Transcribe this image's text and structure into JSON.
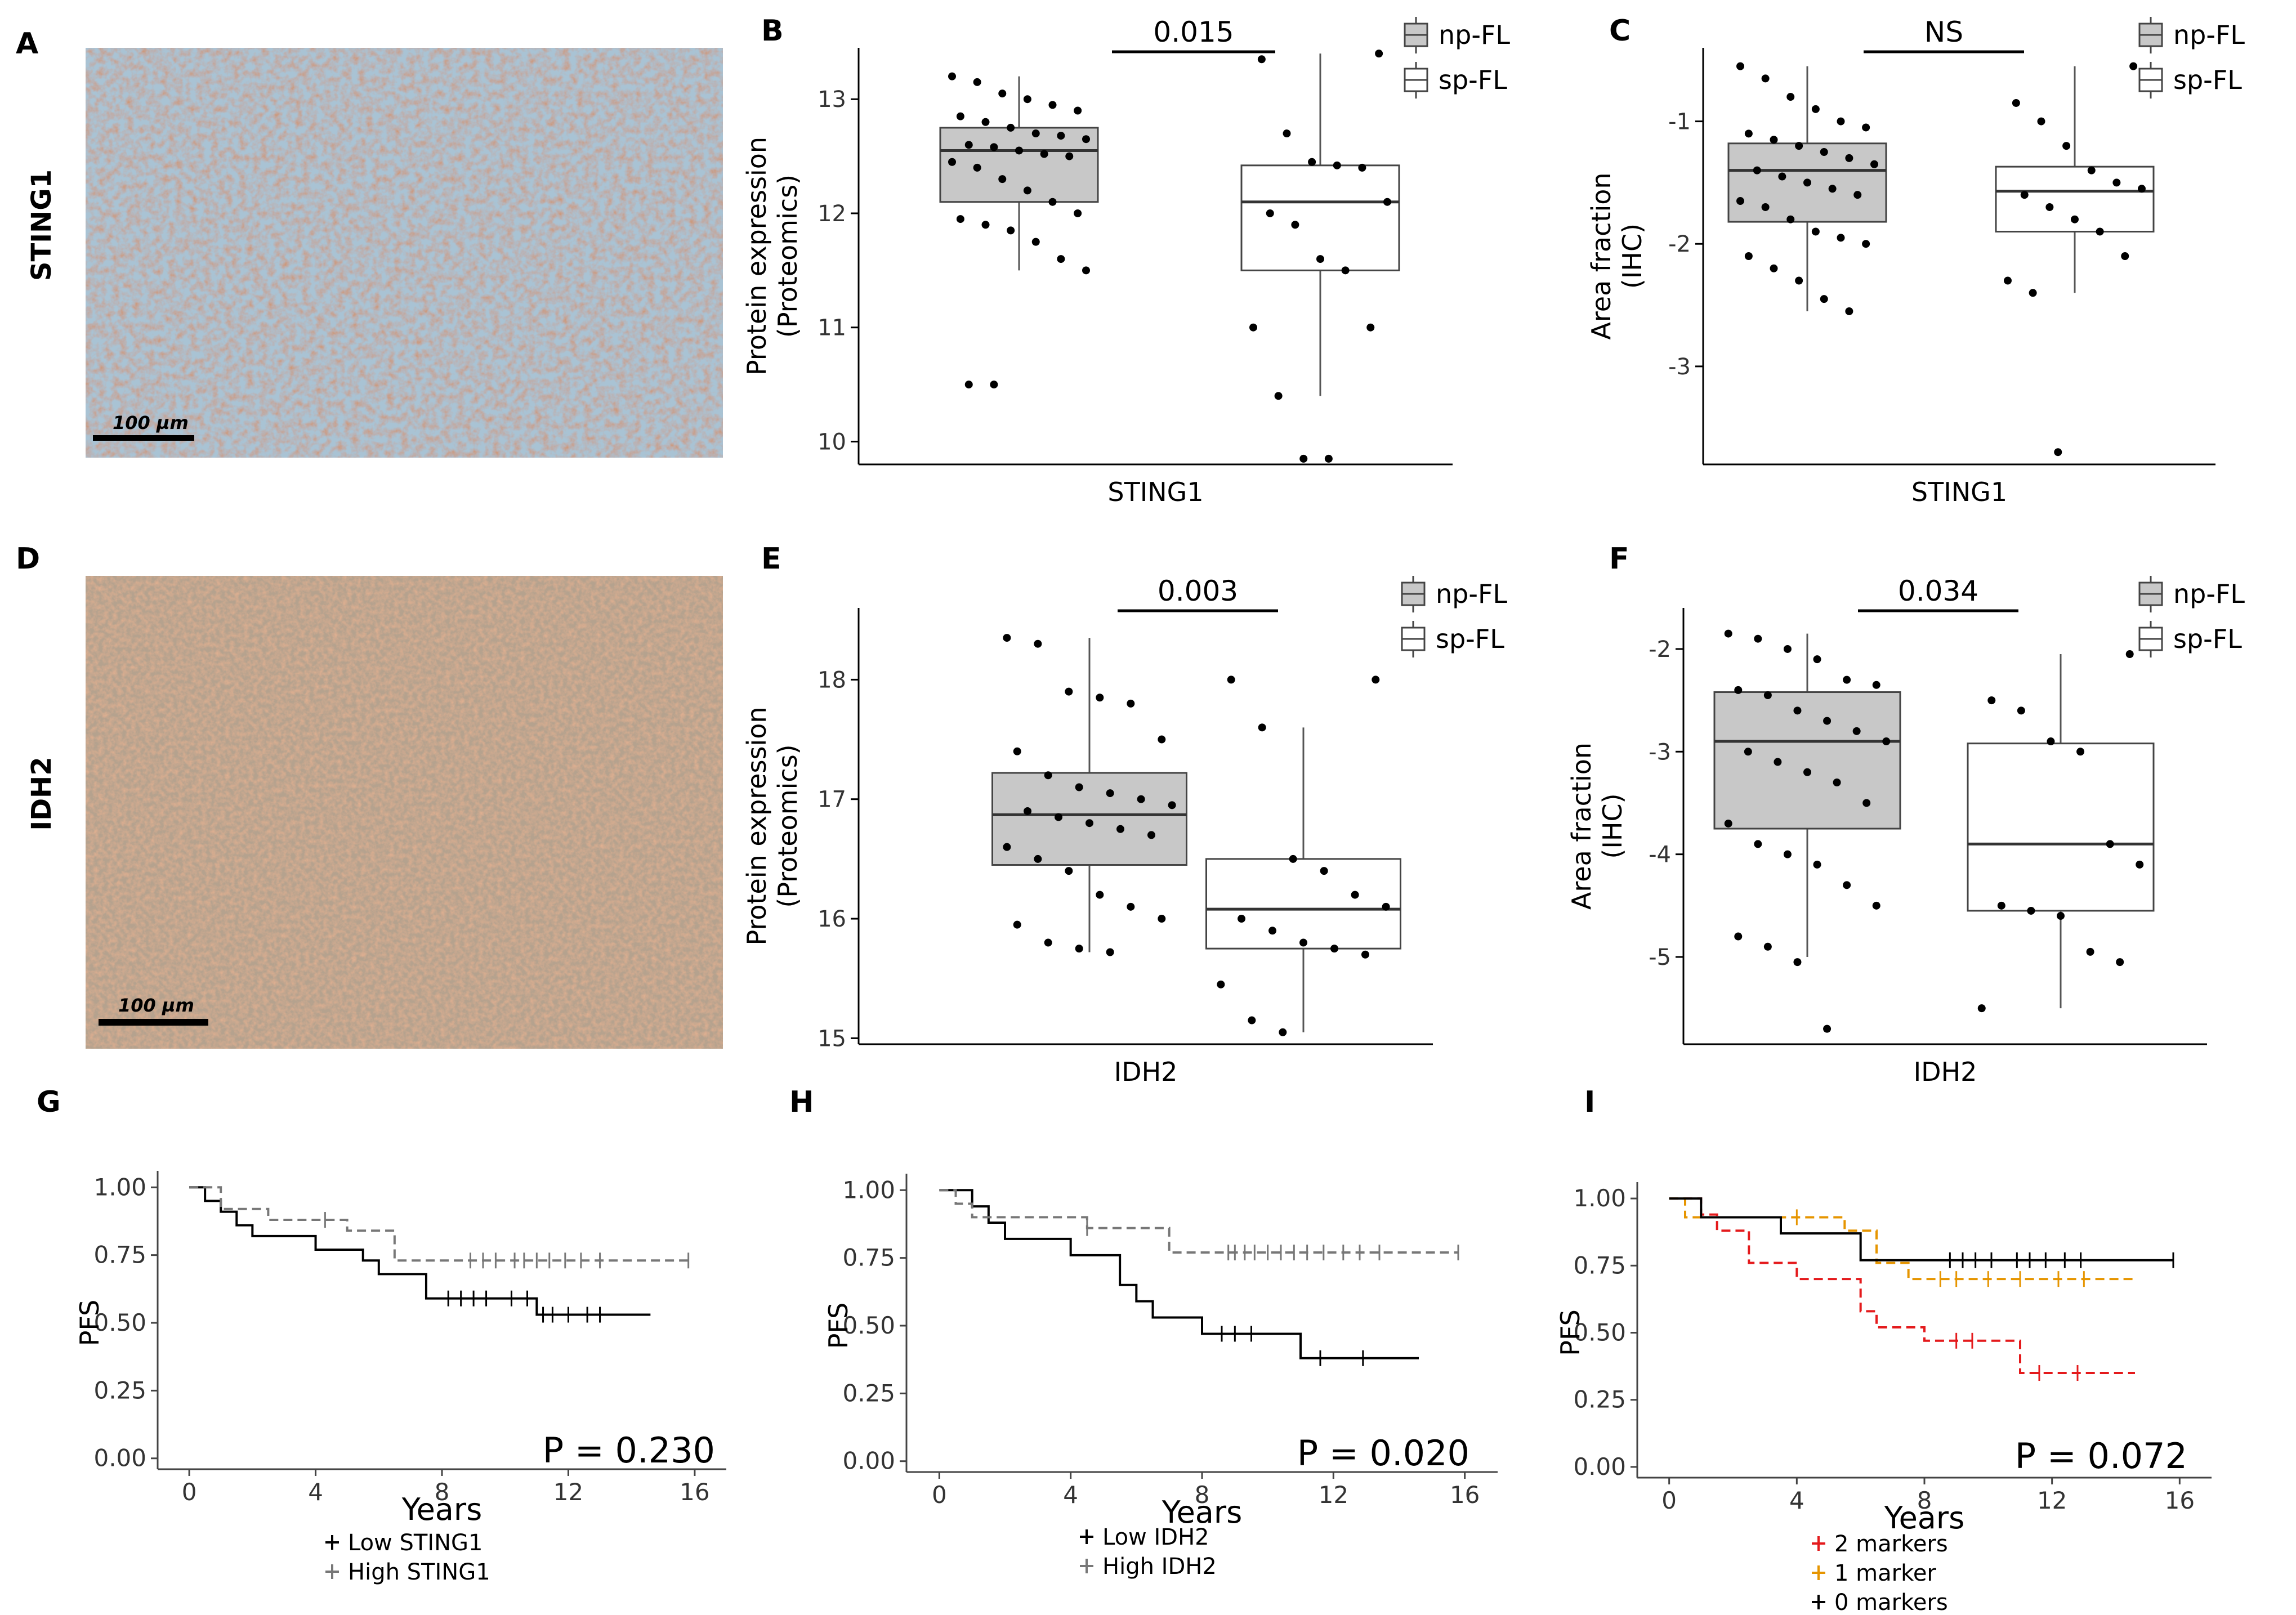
{
  "panel_labels": [
    "A",
    "B",
    "C",
    "D",
    "E",
    "F",
    "G",
    "H",
    "I"
  ],
  "micrographs": [
    {
      "row_label": "STING1",
      "scale_bar": "100 µm",
      "stain_color": "#9c4a26"
    },
    {
      "row_label": "IDH2",
      "scale_bar": "100 µm",
      "stain_color": "#c26a40"
    }
  ],
  "group_colors": {
    "np-FL": "#c8c8c8",
    "sp-FL": "#ffffff"
  },
  "km_colors": {
    "low": "#000000",
    "high": "#777777",
    "two": "#e41a1c",
    "one": "#e69500",
    "zero": "#000000"
  },
  "chart_data": [
    {
      "panel": "B",
      "type": "box",
      "xlabel": "STING1",
      "ylabel_line1": "Protein expression",
      "ylabel_line2": "(Proteomics)",
      "ylim": [
        9.8,
        13.45
      ],
      "yticks": [
        10,
        11,
        12,
        13
      ],
      "ytick_labels": [
        "10",
        "11",
        "12",
        "13"
      ],
      "legend": [
        "np-FL",
        "sp-FL"
      ],
      "significance": "0.015",
      "series": [
        {
          "name": "np-FL",
          "q1": 12.1,
          "median": 12.55,
          "q3": 12.75,
          "whisker_low": 11.5,
          "whisker_high": 13.2,
          "points": [
            13.2,
            13.15,
            13.05,
            13.0,
            12.95,
            12.9,
            12.85,
            12.8,
            12.75,
            12.7,
            12.68,
            12.65,
            12.6,
            12.58,
            12.55,
            12.52,
            12.5,
            12.45,
            12.4,
            12.3,
            12.2,
            12.1,
            12.0,
            11.95,
            11.9,
            11.85,
            11.75,
            11.6,
            11.5,
            10.5,
            10.5
          ]
        },
        {
          "name": "sp-FL",
          "q1": 11.5,
          "median": 12.1,
          "q3": 12.42,
          "whisker_low": 10.4,
          "whisker_high": 13.4,
          "points": [
            13.4,
            13.35,
            12.7,
            12.45,
            12.42,
            12.4,
            12.1,
            12.0,
            11.9,
            11.6,
            11.5,
            11.0,
            11.0,
            10.4,
            9.85,
            9.85
          ]
        }
      ]
    },
    {
      "panel": "C",
      "type": "box",
      "xlabel": "STING1",
      "ylabel_line1": "Area fraction",
      "ylabel_line2": "(IHC)",
      "ylim": [
        -3.8,
        -0.4
      ],
      "yticks": [
        -1,
        -2,
        -3
      ],
      "ytick_labels": [
        "-1",
        "-2",
        "-3"
      ],
      "legend": [
        "np-FL",
        "sp-FL"
      ],
      "significance": "NS",
      "series": [
        {
          "name": "np-FL",
          "q1": -1.82,
          "median": -1.4,
          "q3": -1.18,
          "whisker_low": -2.55,
          "whisker_high": -0.55,
          "points": [
            -0.55,
            -0.65,
            -0.8,
            -0.9,
            -1.0,
            -1.05,
            -1.1,
            -1.15,
            -1.2,
            -1.25,
            -1.3,
            -1.35,
            -1.4,
            -1.45,
            -1.5,
            -1.55,
            -1.6,
            -1.65,
            -1.7,
            -1.8,
            -1.9,
            -1.95,
            -2.0,
            -2.1,
            -2.2,
            -2.3,
            -2.45,
            -2.55
          ]
        },
        {
          "name": "sp-FL",
          "q1": -1.9,
          "median": -1.57,
          "q3": -1.37,
          "whisker_low": -2.4,
          "whisker_high": -0.55,
          "points": [
            -0.55,
            -0.85,
            -1.0,
            -1.2,
            -1.4,
            -1.5,
            -1.55,
            -1.6,
            -1.7,
            -1.8,
            -1.9,
            -2.1,
            -2.3,
            -2.4,
            -3.7
          ]
        }
      ]
    },
    {
      "panel": "E",
      "type": "box",
      "xlabel": "IDH2",
      "ylabel_line1": "Protein expression",
      "ylabel_line2": "(Proteomics)",
      "ylim": [
        14.95,
        18.6
      ],
      "yticks": [
        15,
        16,
        17,
        18
      ],
      "ytick_labels": [
        "15",
        "16",
        "17",
        "18"
      ],
      "legend": [
        "np-FL",
        "sp-FL"
      ],
      "significance": "0.003",
      "series": [
        {
          "name": "np-FL",
          "q1": 16.45,
          "median": 16.87,
          "q3": 17.22,
          "whisker_low": 15.72,
          "whisker_high": 18.35,
          "points": [
            18.35,
            18.3,
            17.9,
            17.85,
            17.8,
            17.5,
            17.4,
            17.2,
            17.1,
            17.05,
            17.0,
            16.95,
            16.9,
            16.85,
            16.8,
            16.75,
            16.7,
            16.6,
            16.5,
            16.4,
            16.2,
            16.1,
            16.0,
            15.95,
            15.8,
            15.75,
            15.72
          ]
        },
        {
          "name": "sp-FL",
          "q1": 15.75,
          "median": 16.08,
          "q3": 16.5,
          "whisker_low": 15.05,
          "whisker_high": 17.6,
          "points": [
            18.0,
            18.0,
            17.6,
            16.5,
            16.4,
            16.2,
            16.1,
            16.0,
            15.9,
            15.8,
            15.75,
            15.7,
            15.45,
            15.15,
            15.05
          ]
        }
      ]
    },
    {
      "panel": "F",
      "type": "box",
      "xlabel": "IDH2",
      "ylabel_line1": "Area fraction",
      "ylabel_line2": "(IHC)",
      "ylim": [
        -5.85,
        -1.6
      ],
      "yticks": [
        -2,
        -3,
        -4,
        -5
      ],
      "ytick_labels": [
        "-2",
        "-3",
        "-4",
        "-5"
      ],
      "legend": [
        "np-FL",
        "sp-FL"
      ],
      "significance": "0.034",
      "series": [
        {
          "name": "np-FL",
          "q1": -3.75,
          "median": -2.9,
          "q3": -2.42,
          "whisker_low": -5.0,
          "whisker_high": -1.85,
          "points": [
            -1.85,
            -1.9,
            -2.0,
            -2.1,
            -2.3,
            -2.35,
            -2.4,
            -2.45,
            -2.6,
            -2.7,
            -2.8,
            -2.9,
            -3.0,
            -3.1,
            -3.2,
            -3.3,
            -3.5,
            -3.7,
            -3.9,
            -4.0,
            -4.1,
            -4.3,
            -4.5,
            -4.8,
            -4.9,
            -5.05,
            -5.7
          ]
        },
        {
          "name": "sp-FL",
          "q1": -4.55,
          "median": -3.9,
          "q3": -2.92,
          "whisker_low": -5.5,
          "whisker_high": -2.05,
          "points": [
            -2.05,
            -2.5,
            -2.6,
            -2.9,
            -3.0,
            -3.9,
            -4.1,
            -4.5,
            -4.55,
            -4.6,
            -4.95,
            -5.05,
            -5.5
          ]
        }
      ]
    },
    {
      "panel": "G",
      "type": "line",
      "subtype": "kaplan-meier",
      "xlabel": "Years",
      "ylabel": "PFS",
      "xlim": [
        -1,
        17
      ],
      "ylim": [
        -0.04,
        1.04
      ],
      "xticks": [
        0,
        4,
        8,
        12,
        16
      ],
      "xtick_labels": [
        "0",
        "4",
        "8",
        "12",
        "16"
      ],
      "yticks": [
        0,
        0.25,
        0.5,
        0.75,
        1
      ],
      "ytick_labels": [
        "0.00",
        "0.25",
        "0.50",
        "0.75",
        "1.00"
      ],
      "pvalue": "P = 0.230",
      "series": [
        {
          "name": "Low STING1",
          "style": "solid",
          "color_key": "low",
          "x": [
            0,
            0.5,
            1.0,
            1.5,
            2.0,
            4.0,
            5.5,
            6.0,
            7.5,
            11.0,
            14.6
          ],
          "y": [
            1.0,
            0.95,
            0.91,
            0.86,
            0.82,
            0.77,
            0.73,
            0.68,
            0.59,
            0.53,
            0.53
          ],
          "censor": [
            8.2,
            8.6,
            9.0,
            9.4,
            10.2,
            10.7,
            11.2,
            11.5,
            12.0,
            12.6,
            13.0
          ]
        },
        {
          "name": "High STING1",
          "style": "dashed",
          "color_key": "high",
          "x": [
            0,
            1.0,
            2.5,
            5.0,
            6.5,
            15.8
          ],
          "y": [
            1.0,
            0.92,
            0.88,
            0.84,
            0.73,
            0.73
          ],
          "censor": [
            4.3,
            8.9,
            9.3,
            9.7,
            10.3,
            10.6,
            11.0,
            11.4,
            11.9,
            12.4,
            13.0,
            15.8
          ]
        }
      ],
      "legend": [
        "Low STING1",
        "High STING1"
      ]
    },
    {
      "panel": "H",
      "type": "line",
      "subtype": "kaplan-meier",
      "xlabel": "Years",
      "ylabel": "PFS",
      "xlim": [
        -1,
        17
      ],
      "ylim": [
        -0.04,
        1.04
      ],
      "xticks": [
        0,
        4,
        8,
        12,
        16
      ],
      "xtick_labels": [
        "0",
        "4",
        "8",
        "12",
        "16"
      ],
      "yticks": [
        0,
        0.25,
        0.5,
        0.75,
        1
      ],
      "ytick_labels": [
        "0.00",
        "0.25",
        "0.50",
        "0.75",
        "1.00"
      ],
      "pvalue": "P = 0.020",
      "series": [
        {
          "name": "Low IDH2",
          "style": "solid",
          "color_key": "low",
          "x": [
            0,
            1.0,
            1.5,
            2.0,
            4.0,
            5.5,
            6.0,
            6.5,
            8.0,
            11.0,
            14.6
          ],
          "y": [
            1.0,
            0.94,
            0.88,
            0.82,
            0.76,
            0.65,
            0.59,
            0.53,
            0.47,
            0.38,
            0.38
          ],
          "censor": [
            8.6,
            9.0,
            9.5,
            11.6,
            12.9
          ]
        },
        {
          "name": "High IDH2",
          "style": "dashed",
          "color_key": "high",
          "x": [
            0,
            0.5,
            1.0,
            4.5,
            7.0,
            15.8
          ],
          "y": [
            1.0,
            0.95,
            0.9,
            0.86,
            0.77,
            0.77
          ],
          "censor": [
            4.5,
            8.8,
            9.0,
            9.3,
            9.6,
            10.0,
            10.4,
            10.8,
            11.2,
            11.7,
            12.3,
            12.8,
            13.4,
            15.8
          ]
        }
      ],
      "legend": [
        "Low IDH2",
        "High IDH2"
      ]
    },
    {
      "panel": "I",
      "type": "line",
      "subtype": "kaplan-meier",
      "xlabel": "Years",
      "ylabel": "PFS",
      "xlim": [
        -1,
        17
      ],
      "ylim": [
        -0.04,
        1.04
      ],
      "xticks": [
        0,
        4,
        8,
        12,
        16
      ],
      "xtick_labels": [
        "0",
        "4",
        "8",
        "12",
        "16"
      ],
      "yticks": [
        0,
        0.25,
        0.5,
        0.75,
        1
      ],
      "ytick_labels": [
        "0.00",
        "0.25",
        "0.50",
        "0.75",
        "1.00"
      ],
      "pvalue": "P = 0.072",
      "series": [
        {
          "name": "2 markers",
          "style": "dashed",
          "color_key": "two",
          "x": [
            0,
            1.0,
            1.5,
            2.5,
            4.0,
            6.0,
            6.5,
            8.0,
            11.0,
            14.6
          ],
          "y": [
            1.0,
            0.94,
            0.88,
            0.76,
            0.7,
            0.58,
            0.52,
            0.47,
            0.35,
            0.35
          ],
          "censor": [
            9.0,
            9.5,
            11.6,
            12.8
          ]
        },
        {
          "name": "1 marker",
          "style": "dashed",
          "color_key": "one",
          "x": [
            0,
            0.5,
            5.5,
            6.5,
            7.5,
            14.6
          ],
          "y": [
            1.0,
            0.93,
            0.88,
            0.76,
            0.7,
            0.7
          ],
          "censor": [
            4.0,
            8.5,
            9.0,
            10.0,
            11.0,
            12.2,
            13.0
          ]
        },
        {
          "name": "0 markers",
          "style": "solid",
          "color_key": "zero",
          "x": [
            0,
            1.0,
            3.5,
            6.0,
            15.8
          ],
          "y": [
            1.0,
            0.93,
            0.87,
            0.77,
            0.77
          ],
          "censor": [
            8.8,
            9.2,
            9.6,
            10.1,
            10.9,
            11.3,
            11.8,
            12.4,
            12.9,
            15.8
          ]
        }
      ],
      "legend": [
        "2 markers",
        "1 marker",
        "0 markers"
      ]
    }
  ]
}
